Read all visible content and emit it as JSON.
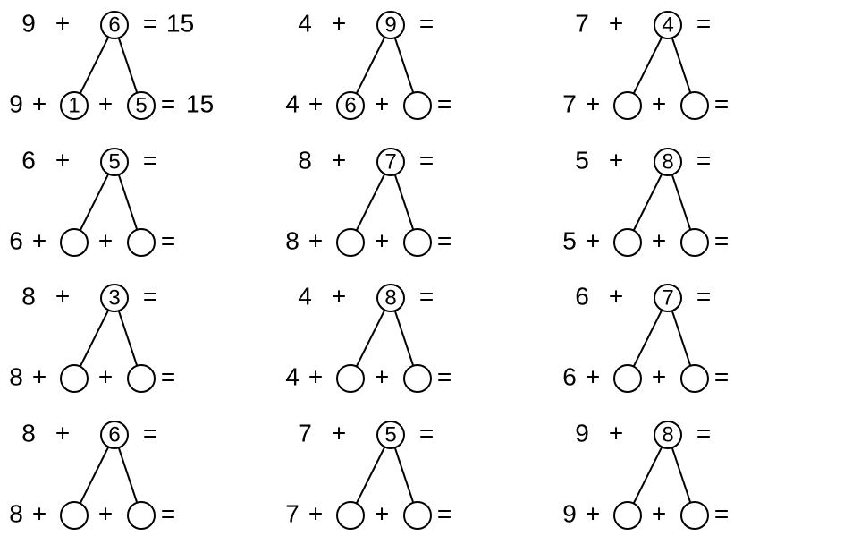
{
  "worksheet": {
    "circle_radius": 15,
    "stroke_color": "#000000",
    "background_color": "#ffffff",
    "font_size_main": 28,
    "font_size_circle": 24,
    "font_family": "Arial",
    "problems": [
      {
        "a": "9",
        "b": "6",
        "result": "15",
        "split_left": "1",
        "split_right": "5",
        "expanded_result": "15"
      },
      {
        "a": "4",
        "b": "9",
        "result": "",
        "split_left": "6",
        "split_right": "",
        "expanded_result": ""
      },
      {
        "a": "7",
        "b": "4",
        "result": "",
        "split_left": "",
        "split_right": "",
        "expanded_result": ""
      },
      {
        "a": "6",
        "b": "5",
        "result": "",
        "split_left": "",
        "split_right": "",
        "expanded_result": ""
      },
      {
        "a": "8",
        "b": "7",
        "result": "",
        "split_left": "",
        "split_right": "",
        "expanded_result": ""
      },
      {
        "a": "5",
        "b": "8",
        "result": "",
        "split_left": "",
        "split_right": "",
        "expanded_result": ""
      },
      {
        "a": "8",
        "b": "3",
        "result": "",
        "split_left": "",
        "split_right": "",
        "expanded_result": ""
      },
      {
        "a": "4",
        "b": "8",
        "result": "",
        "split_left": "",
        "split_right": "",
        "expanded_result": ""
      },
      {
        "a": "6",
        "b": "7",
        "result": "",
        "split_left": "",
        "split_right": "",
        "expanded_result": ""
      },
      {
        "a": "8",
        "b": "6",
        "result": "",
        "split_left": "",
        "split_right": "",
        "expanded_result": ""
      },
      {
        "a": "7",
        "b": "5",
        "result": "",
        "split_left": "",
        "split_right": "",
        "expanded_result": ""
      },
      {
        "a": "9",
        "b": "8",
        "result": "",
        "split_left": "",
        "split_right": "",
        "expanded_result": ""
      }
    ]
  }
}
